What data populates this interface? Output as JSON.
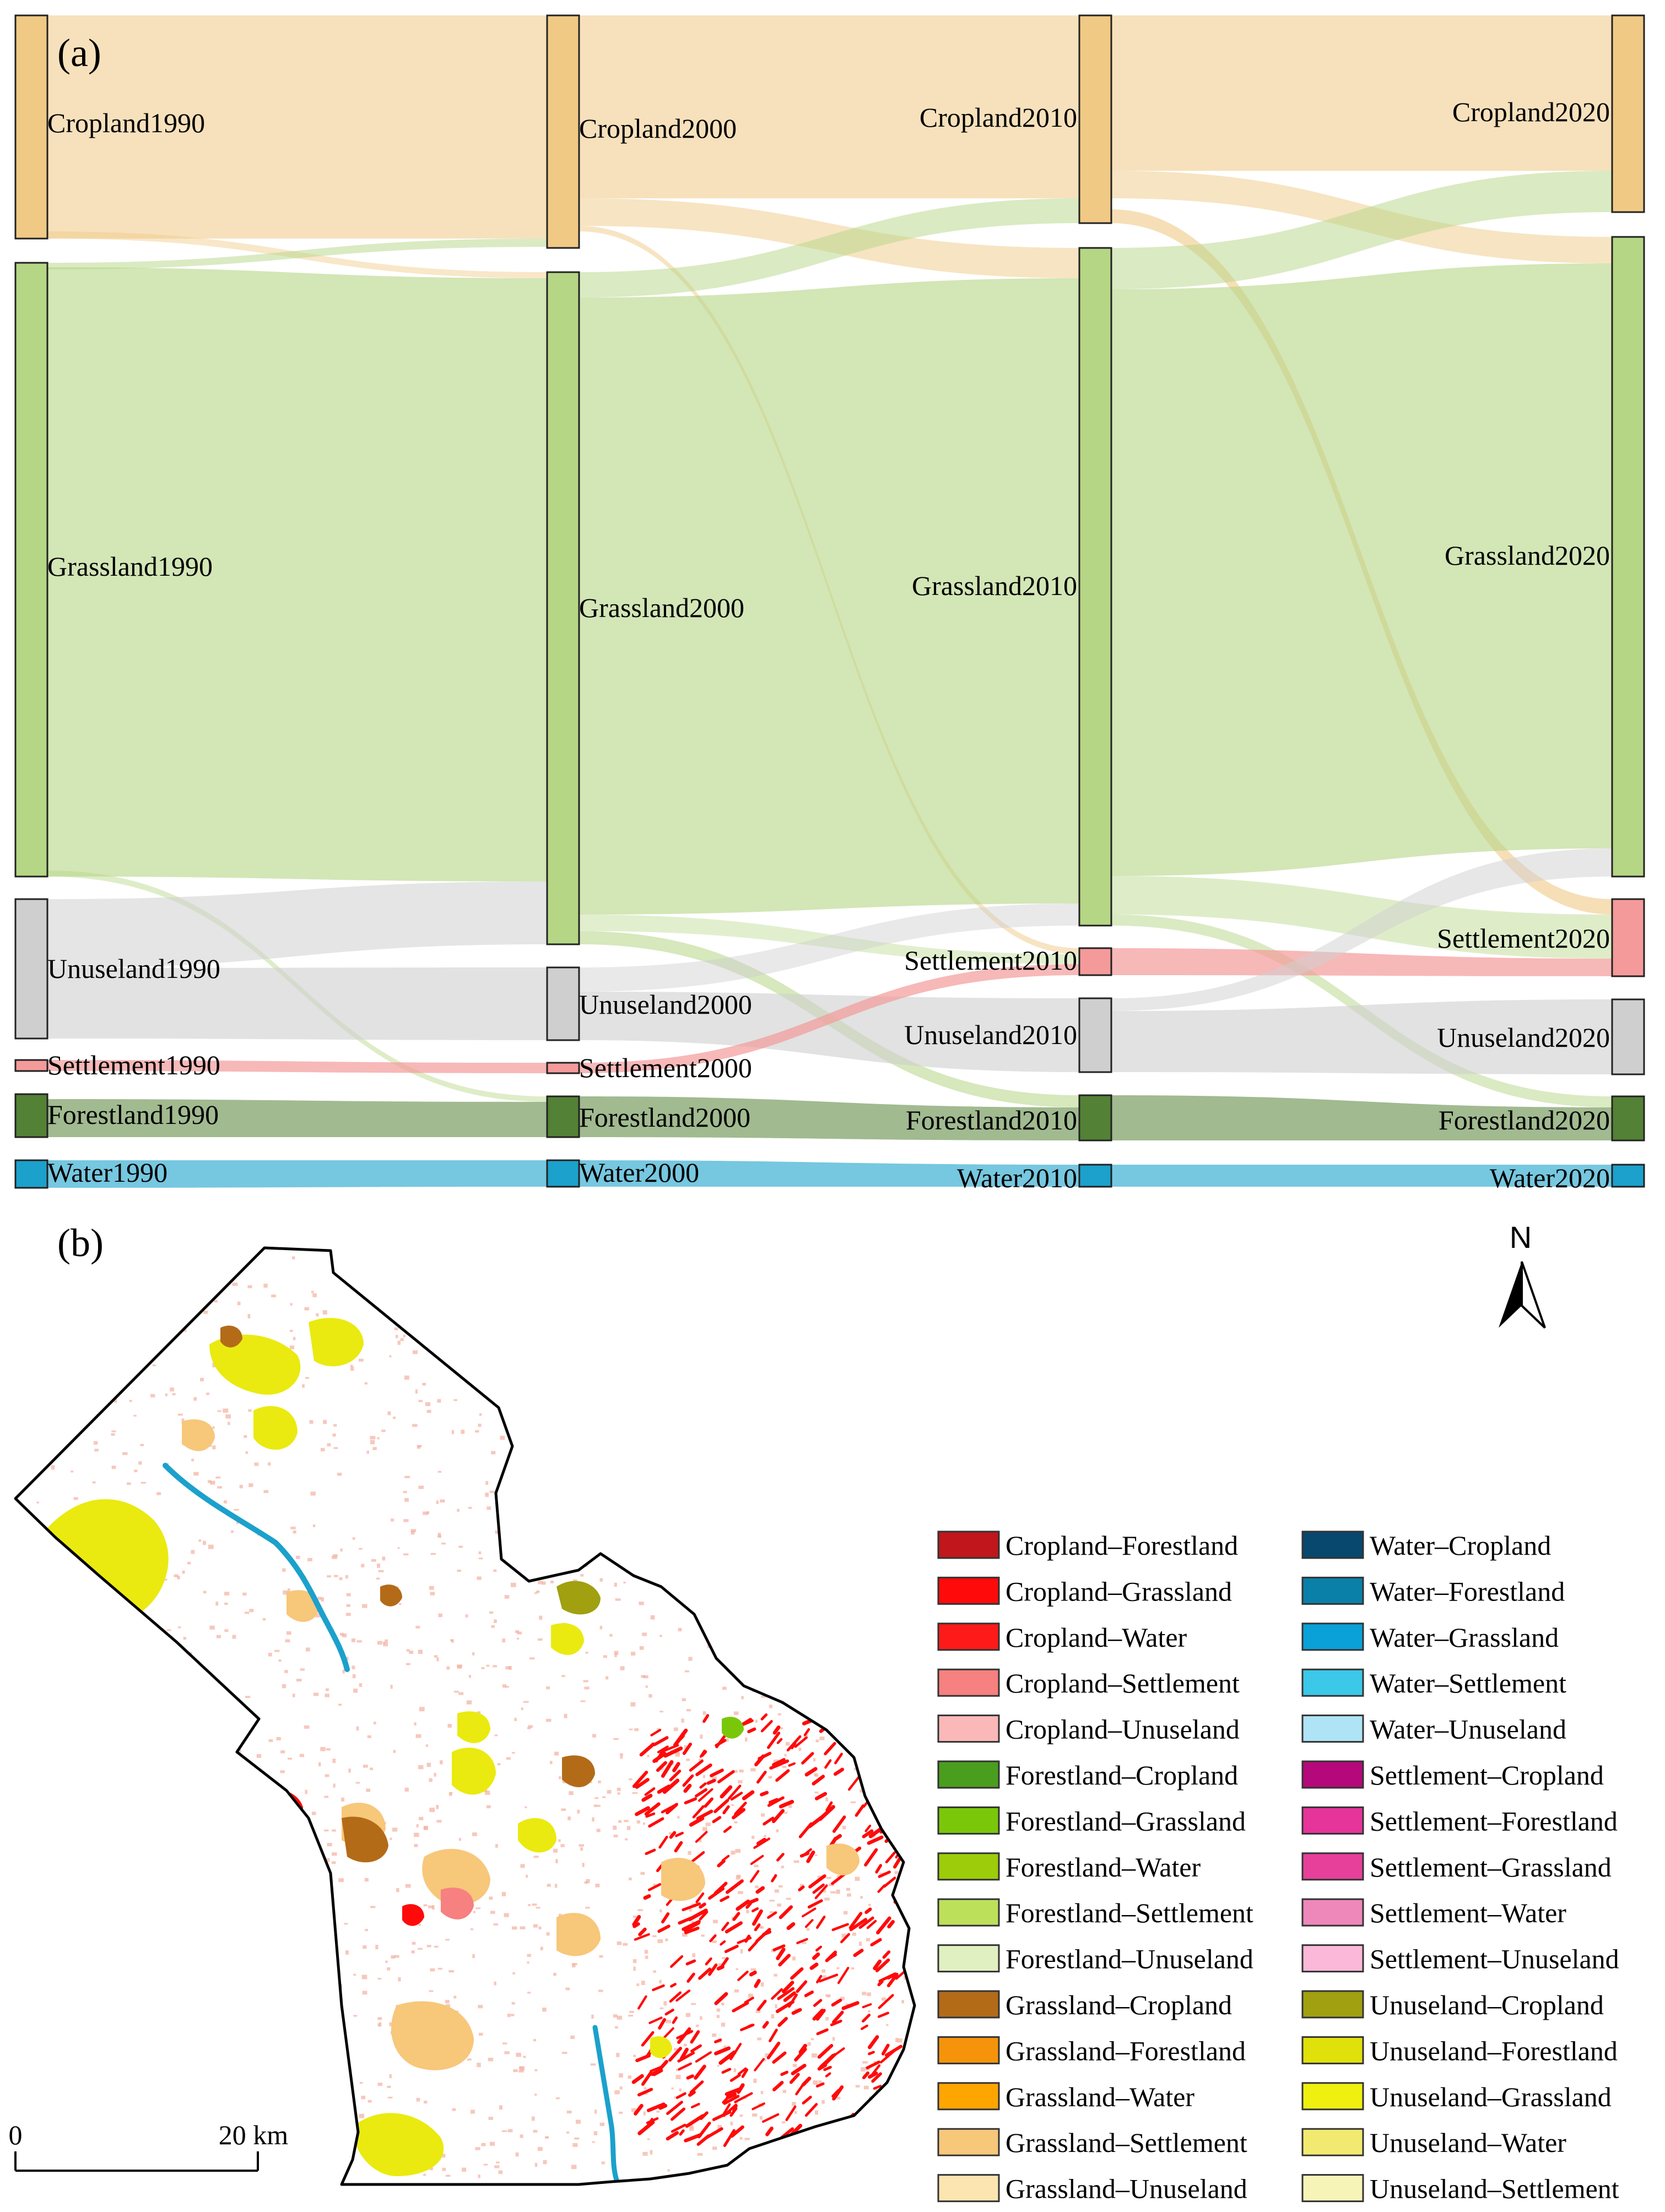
{
  "panel_a": {
    "label": "(a)",
    "colors": {
      "Cropland": "#f0c985",
      "Grassland": "#b5d685",
      "Unuseland": "#cfcfcf",
      "Settlement": "#f49a9a",
      "Forestland": "#538135",
      "Water": "#1ba1cc"
    },
    "years": [
      "1990",
      "2000",
      "2010",
      "2020"
    ],
    "nodes": [
      {
        "year": "1990",
        "label": "Cropland1990",
        "type": "Cropland"
      },
      {
        "year": "1990",
        "label": "Grassland1990",
        "type": "Grassland"
      },
      {
        "year": "1990",
        "label": "Unuseland1990",
        "type": "Unuseland"
      },
      {
        "year": "1990",
        "label": "Settlement1990",
        "type": "Settlement"
      },
      {
        "year": "1990",
        "label": "Forestland1990",
        "type": "Forestland"
      },
      {
        "year": "1990",
        "label": "Water1990",
        "type": "Water"
      },
      {
        "year": "2000",
        "label": "Cropland2000",
        "type": "Cropland"
      },
      {
        "year": "2000",
        "label": "Grassland2000",
        "type": "Grassland"
      },
      {
        "year": "2000",
        "label": "Unuseland2000",
        "type": "Unuseland"
      },
      {
        "year": "2000",
        "label": "Settlement2000",
        "type": "Settlement"
      },
      {
        "year": "2000",
        "label": "Forestland2000",
        "type": "Forestland"
      },
      {
        "year": "2000",
        "label": "Water2000",
        "type": "Water"
      },
      {
        "year": "2010",
        "label": "Cropland2010",
        "type": "Cropland"
      },
      {
        "year": "2010",
        "label": "Grassland2010",
        "type": "Grassland"
      },
      {
        "year": "2010",
        "label": "Settlement2010",
        "type": "Settlement"
      },
      {
        "year": "2010",
        "label": "Unuseland2010",
        "type": "Unuseland"
      },
      {
        "year": "2010",
        "label": "Forestland2010",
        "type": "Forestland"
      },
      {
        "year": "2010",
        "label": "Water2010",
        "type": "Water"
      },
      {
        "year": "2020",
        "label": "Cropland2020",
        "type": "Cropland"
      },
      {
        "year": "2020",
        "label": "Grassland2020",
        "type": "Grassland"
      },
      {
        "year": "2020",
        "label": "Settlement2020",
        "type": "Settlement"
      },
      {
        "year": "2020",
        "label": "Unuseland2020",
        "type": "Unuseland"
      },
      {
        "year": "2020",
        "label": "Forestland2020",
        "type": "Forestland"
      },
      {
        "year": "2020",
        "label": "Water2020",
        "type": "Water"
      }
    ]
  },
  "panel_b": {
    "label": "(b)",
    "north_label": "N",
    "scale_start": "0",
    "scale_end": "20 km",
    "legend": [
      {
        "label": "Cropland–Forestland",
        "color": "#c0161c"
      },
      {
        "label": "Cropland–Grassland",
        "color": "#ff0a0a"
      },
      {
        "label": "Cropland–Water",
        "color": "#ff1a1a"
      },
      {
        "label": "Cropland–Settlement",
        "color": "#f78080"
      },
      {
        "label": "Cropland–Unuseland",
        "color": "#fbb8b8"
      },
      {
        "label": "Forestland–Cropland",
        "color": "#4a9e1e"
      },
      {
        "label": "Forestland–Grassland",
        "color": "#7ac70a"
      },
      {
        "label": "Forestland–Water",
        "color": "#9ccc0a"
      },
      {
        "label": "Forestland–Settlement",
        "color": "#bde05a"
      },
      {
        "label": "Forestland–Unuseland",
        "color": "#e0f0c0"
      },
      {
        "label": "Grassland–Cropland",
        "color": "#b36b18"
      },
      {
        "label": "Grassland–Forestland",
        "color": "#f5940a"
      },
      {
        "label": "Grassland–Water",
        "color": "#ffa500"
      },
      {
        "label": "Grassland–Settlement",
        "color": "#f7c77a"
      },
      {
        "label": "Grassland–Unuseland",
        "color": "#fce5b0"
      },
      {
        "label": "Water–Cropland",
        "color": "#08476e"
      },
      {
        "label": "Water–Forestland",
        "color": "#0a7fa8"
      },
      {
        "label": "Water–Grassland",
        "color": "#0aa0d8"
      },
      {
        "label": "Water–Settlement",
        "color": "#3cc8e8"
      },
      {
        "label": "Water–Unuseland",
        "color": "#aee4f5"
      },
      {
        "label": "Settlement–Cropland",
        "color": "#b5087a"
      },
      {
        "label": "Settlement–Forestland",
        "color": "#e6349a"
      },
      {
        "label": "Settlement–Grassland",
        "color": "#e6409a"
      },
      {
        "label": "Settlement–Water",
        "color": "#ee88bb"
      },
      {
        "label": "Settlement–Unuseland",
        "color": "#fbb8d8"
      },
      {
        "label": "Unuseland–Cropland",
        "color": "#a0a010"
      },
      {
        "label": "Unuseland–Forestland",
        "color": "#e0e00a"
      },
      {
        "label": "Unuseland–Grassland",
        "color": "#f0f010"
      },
      {
        "label": "Unuseland–Water",
        "color": "#f2ea70"
      },
      {
        "label": "Unuseland–Settlement",
        "color": "#f7f4b8"
      }
    ],
    "map_colors": {
      "boundary": "#000000",
      "river": "#1ba1cc",
      "unuse_grass": "#eaea10",
      "grass_settle": "#f7c77a",
      "grass_crop": "#b36b18",
      "crop_grass": "#ff0a0a",
      "unuse_crop": "#a0a010",
      "forest_grass": "#7ac70a",
      "crop_settle": "#f78080",
      "speckle": "#f2b0a0"
    }
  }
}
